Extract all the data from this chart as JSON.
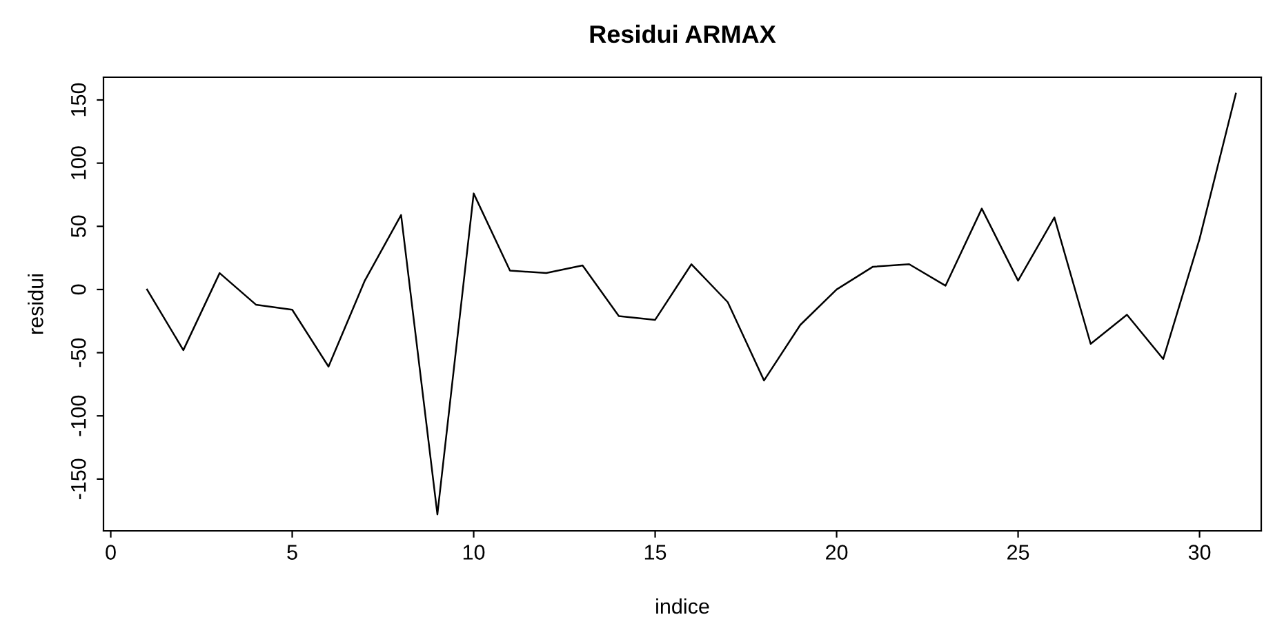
{
  "chart_data": {
    "type": "line",
    "title": "Residui ARMAX",
    "xlabel": "indice",
    "ylabel": "residui",
    "x": [
      1,
      2,
      3,
      4,
      5,
      6,
      7,
      8,
      9,
      10,
      11,
      12,
      13,
      14,
      15,
      16,
      17,
      18,
      19,
      20,
      21,
      22,
      23,
      24,
      25,
      26,
      27,
      28,
      29,
      30,
      31
    ],
    "series": [
      {
        "color": "#000000",
        "values": [
          0,
          -48,
          13,
          -12,
          -16,
          -61,
          7,
          59,
          -178,
          76,
          15,
          13,
          19,
          -21,
          -24,
          20,
          -10,
          -72,
          -28,
          0,
          18,
          20,
          3,
          64,
          7,
          57,
          -43,
          -20,
          -55,
          40,
          155
        ]
      }
    ],
    "xlim": [
      -0.2,
      31.7
    ],
    "ylim": [
      -191,
      168
    ],
    "xticks": [
      0,
      5,
      10,
      15,
      20,
      25,
      30
    ],
    "yticks": [
      -150,
      -100,
      -50,
      0,
      50,
      100,
      150
    ],
    "grid": false,
    "legend": false,
    "marker": "none",
    "line_style": "solid"
  }
}
